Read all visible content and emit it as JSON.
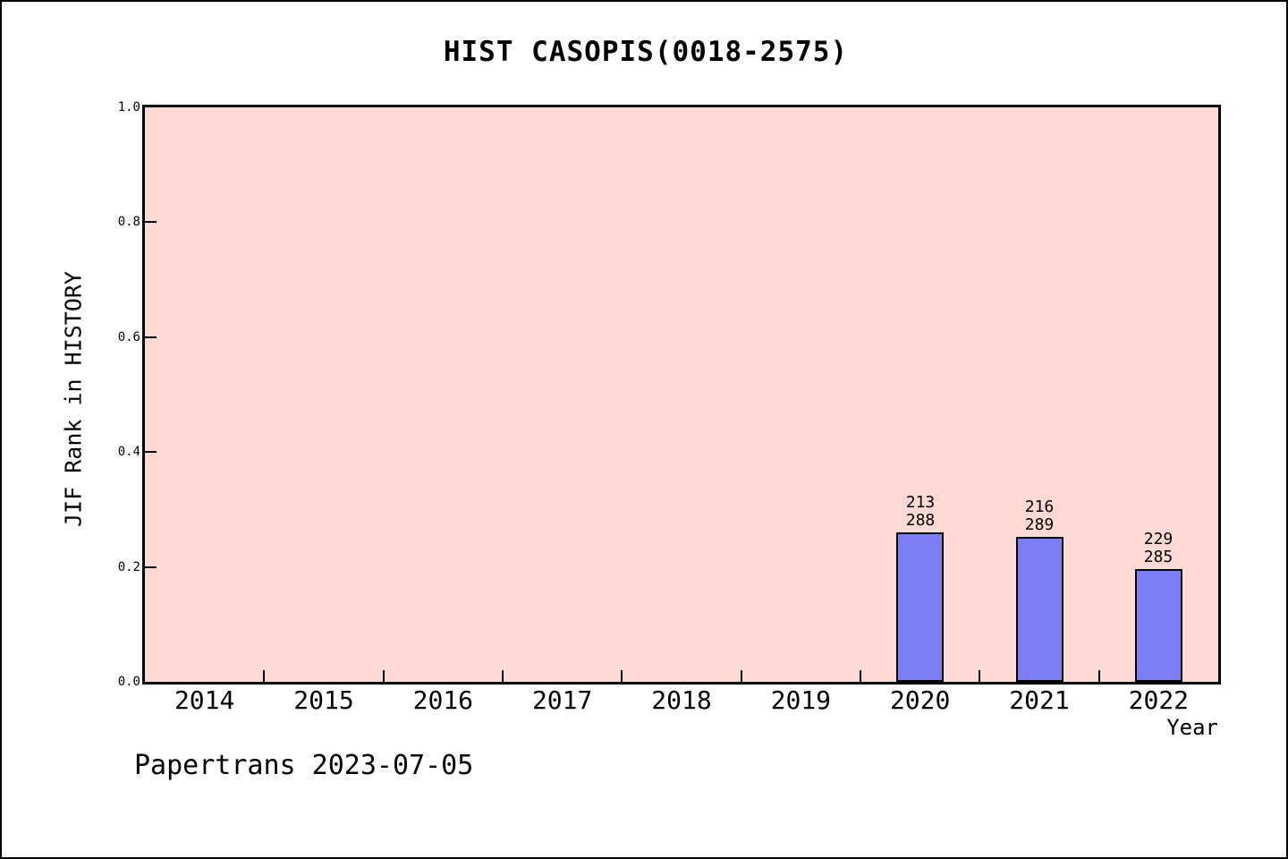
{
  "page": {
    "background": "#ffffff",
    "border_color": "#000000"
  },
  "title": "HIST CASOPIS(0018-2575)",
  "footer": "Papertrans 2023-07-05",
  "chart_data": {
    "type": "bar",
    "title": "HIST CASOPIS(0018-2575)",
    "xlabel": "Year",
    "ylabel": "JIF Rank in HISTORY",
    "ylim": [
      0.0,
      1.0
    ],
    "grid": false,
    "legend": "none",
    "plot_bg_color": "#ffd9d4",
    "bar_fill_color": "#7d7df5",
    "bar_edge_color": "#000000",
    "axis_color": "#000000",
    "yticks": [
      {
        "value": 0.0,
        "label": "0.0"
      },
      {
        "value": 0.2,
        "label": "0.2"
      },
      {
        "value": 0.4,
        "label": "0.4"
      },
      {
        "value": 0.6,
        "label": "0.6"
      },
      {
        "value": 0.8,
        "label": "0.8"
      },
      {
        "value": 1.0,
        "label": "1.0"
      }
    ],
    "categories": [
      "2014",
      "2015",
      "2016",
      "2017",
      "2018",
      "2019",
      "2020",
      "2021",
      "2022"
    ],
    "series": [
      {
        "name": "JIF Rank in HISTORY",
        "points": [
          {
            "category": "2020",
            "value": 0.26,
            "rank": 213,
            "total": 288,
            "label_lines": [
              "213",
              "288"
            ]
          },
          {
            "category": "2021",
            "value": 0.253,
            "rank": 216,
            "total": 289,
            "label_lines": [
              "216",
              "289"
            ]
          },
          {
            "category": "2022",
            "value": 0.196,
            "rank": 229,
            "total": 285,
            "label_lines": [
              "229",
              "285"
            ]
          }
        ]
      }
    ]
  }
}
